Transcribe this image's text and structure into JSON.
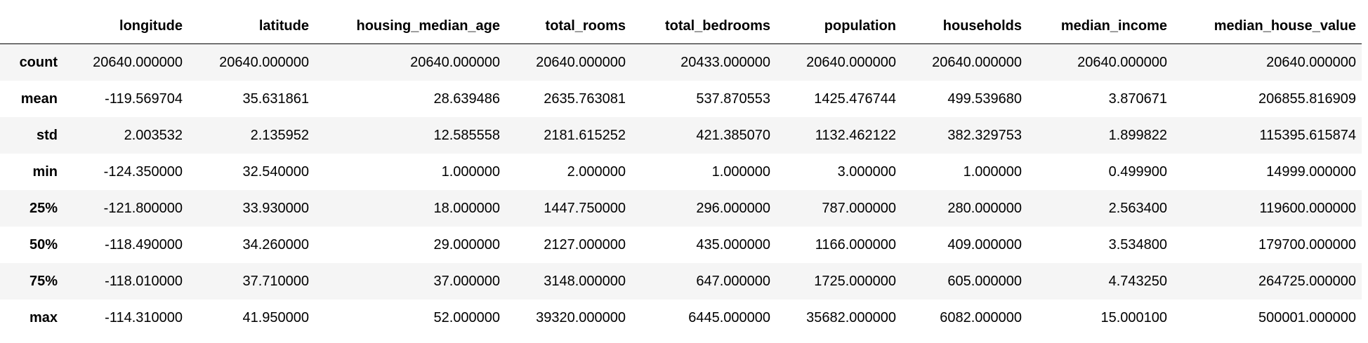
{
  "table": {
    "columns": [
      "longitude",
      "latitude",
      "housing_median_age",
      "total_rooms",
      "total_bedrooms",
      "population",
      "households",
      "median_income",
      "median_house_value"
    ],
    "rows": [
      {
        "index": "count",
        "cells": [
          "20640.000000",
          "20640.000000",
          "20640.000000",
          "20640.000000",
          "20433.000000",
          "20640.000000",
          "20640.000000",
          "20640.000000",
          "20640.000000"
        ]
      },
      {
        "index": "mean",
        "cells": [
          "-119.569704",
          "35.631861",
          "28.639486",
          "2635.763081",
          "537.870553",
          "1425.476744",
          "499.539680",
          "3.870671",
          "206855.816909"
        ]
      },
      {
        "index": "std",
        "cells": [
          "2.003532",
          "2.135952",
          "12.585558",
          "2181.615252",
          "421.385070",
          "1132.462122",
          "382.329753",
          "1.899822",
          "115395.615874"
        ]
      },
      {
        "index": "min",
        "cells": [
          "-124.350000",
          "32.540000",
          "1.000000",
          "2.000000",
          "1.000000",
          "3.000000",
          "1.000000",
          "0.499900",
          "14999.000000"
        ]
      },
      {
        "index": "25%",
        "cells": [
          "-121.800000",
          "33.930000",
          "18.000000",
          "1447.750000",
          "296.000000",
          "787.000000",
          "280.000000",
          "2.563400",
          "119600.000000"
        ]
      },
      {
        "index": "50%",
        "cells": [
          "-118.490000",
          "34.260000",
          "29.000000",
          "2127.000000",
          "435.000000",
          "1166.000000",
          "409.000000",
          "3.534800",
          "179700.000000"
        ]
      },
      {
        "index": "75%",
        "cells": [
          "-118.010000",
          "37.710000",
          "37.000000",
          "3148.000000",
          "647.000000",
          "1725.000000",
          "605.000000",
          "4.743250",
          "264725.000000"
        ]
      },
      {
        "index": "max",
        "cells": [
          "-114.310000",
          "41.950000",
          "52.000000",
          "39320.000000",
          "6445.000000",
          "35682.000000",
          "6082.000000",
          "15.000100",
          "500001.000000"
        ]
      }
    ]
  }
}
